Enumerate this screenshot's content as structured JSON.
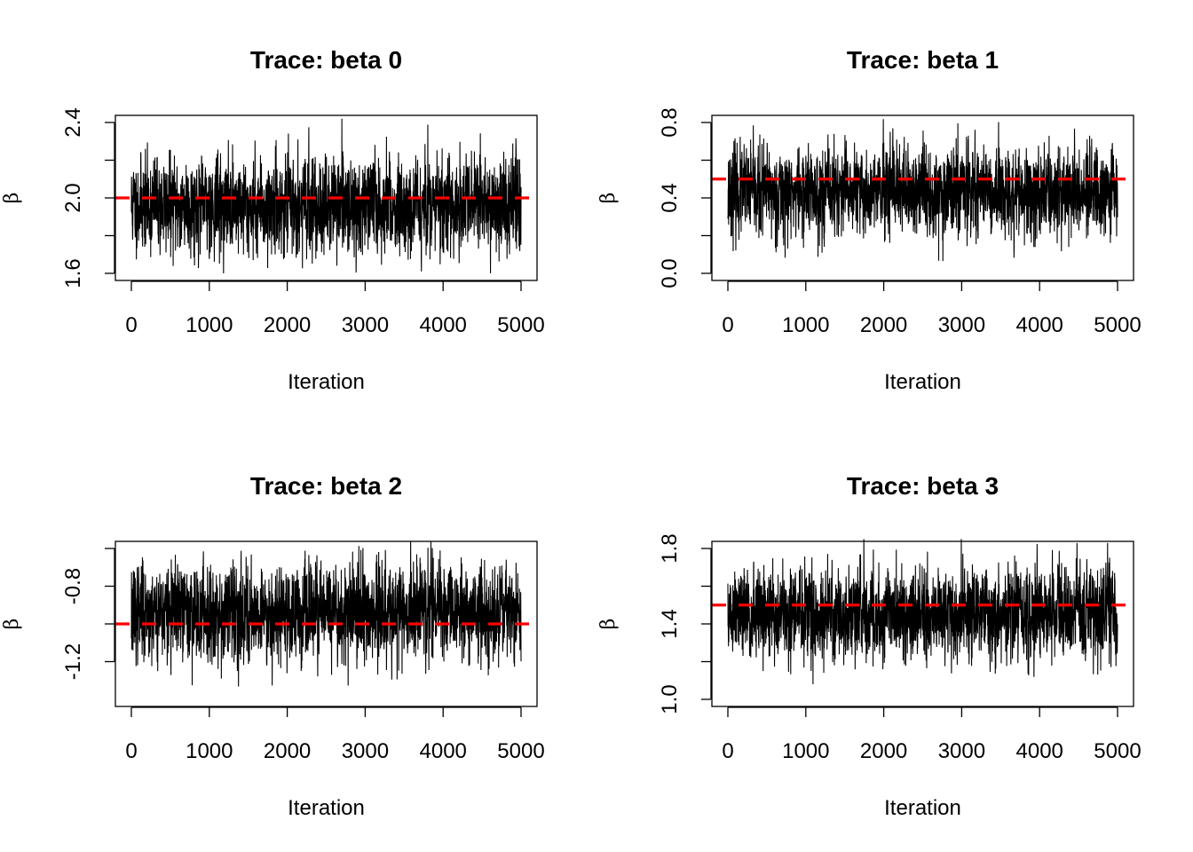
{
  "chart_data": [
    {
      "type": "line",
      "title": "Trace: beta 0",
      "xlabel": "Iteration",
      "ylabel": "β",
      "xlim": [
        0,
        5000
      ],
      "ylim": [
        1.6,
        2.4
      ],
      "xticks": [
        0,
        1000,
        2000,
        3000,
        4000,
        5000
      ],
      "yticks": [
        1.6,
        1.8,
        2.0,
        2.2,
        2.4
      ],
      "ytick_labels": [
        "1.6",
        "",
        "2.0",
        "",
        "2.4"
      ],
      "grid": false,
      "series": [
        {
          "values_summary": {
            "n": 5000,
            "center": 1.96,
            "typical_min": 1.7,
            "typical_max": 2.25,
            "observed_min": 1.6,
            "observed_max": 2.42
          },
          "color": "#000000"
        }
      ],
      "reference_line": {
        "y": 2.0,
        "color": "#ff0000",
        "style": "dashed"
      }
    },
    {
      "type": "line",
      "title": "Trace: beta 1",
      "xlabel": "Iteration",
      "ylabel": "β",
      "xlim": [
        0,
        5000
      ],
      "ylim": [
        0.0,
        0.8
      ],
      "xticks": [
        0,
        1000,
        2000,
        3000,
        4000,
        5000
      ],
      "yticks": [
        0.0,
        0.2,
        0.4,
        0.6,
        0.8
      ],
      "ytick_labels": [
        "0.0",
        "",
        "0.4",
        "",
        "0.8"
      ],
      "grid": false,
      "series": [
        {
          "values_summary": {
            "n": 5000,
            "center": 0.43,
            "typical_min": 0.18,
            "typical_max": 0.7,
            "observed_min": -0.02,
            "observed_max": 0.86
          },
          "color": "#000000"
        }
      ],
      "reference_line": {
        "y": 0.5,
        "color": "#ff0000",
        "style": "dashed"
      }
    },
    {
      "type": "line",
      "title": "Trace: beta 2",
      "xlabel": "Iteration",
      "ylabel": "β",
      "xlim": [
        0,
        5000
      ],
      "ylim": [
        -1.4,
        -0.6
      ],
      "xticks": [
        0,
        1000,
        2000,
        3000,
        4000,
        5000
      ],
      "yticks": [
        -1.2,
        -1.0,
        -0.8,
        -0.6
      ],
      "ytick_labels": [
        "-1.2",
        "",
        "-0.8",
        ""
      ],
      "grid": false,
      "series": [
        {
          "values_summary": {
            "n": 5000,
            "center": -0.94,
            "typical_min": -1.22,
            "typical_max": -0.66,
            "observed_min": -1.38,
            "observed_max": -0.56
          },
          "color": "#000000"
        }
      ],
      "reference_line": {
        "y": -1.0,
        "color": "#ff0000",
        "style": "dashed"
      }
    },
    {
      "type": "line",
      "title": "Trace: beta 3",
      "xlabel": "Iteration",
      "ylabel": "β",
      "xlim": [
        0,
        5000
      ],
      "ylim": [
        1.0,
        1.8
      ],
      "xticks": [
        0,
        1000,
        2000,
        3000,
        4000,
        5000
      ],
      "yticks": [
        1.0,
        1.2,
        1.4,
        1.6,
        1.8
      ],
      "ytick_labels": [
        "1.0",
        "",
        "1.4",
        "",
        "1.8"
      ],
      "grid": false,
      "series": [
        {
          "values_summary": {
            "n": 5000,
            "center": 1.45,
            "typical_min": 1.18,
            "typical_max": 1.72,
            "observed_min": 1.02,
            "observed_max": 1.85
          },
          "color": "#000000"
        }
      ],
      "reference_line": {
        "y": 1.5,
        "color": "#ff0000",
        "style": "dashed"
      }
    }
  ]
}
